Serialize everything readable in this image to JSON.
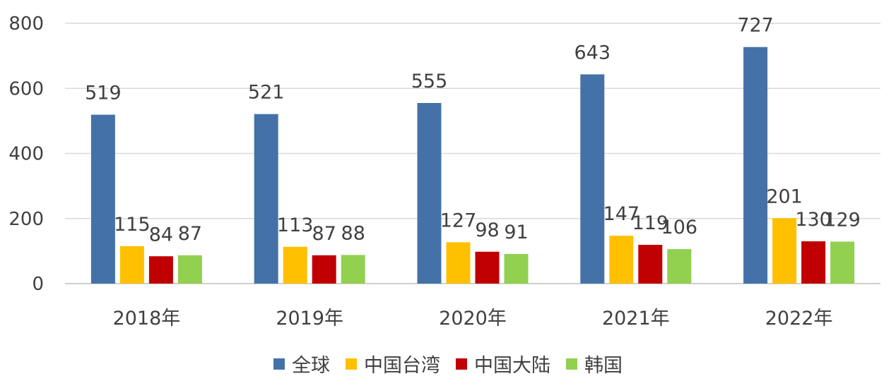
{
  "chart_data": {
    "type": "bar",
    "title": "",
    "xlabel": "",
    "ylabel": "",
    "categories": [
      "2018年",
      "2019年",
      "2020年",
      "2021年",
      "2022年"
    ],
    "ylim": [
      0,
      800
    ],
    "yticks": [
      0,
      200,
      400,
      600,
      800
    ],
    "grid": true,
    "legend_position": "bottom",
    "series": [
      {
        "name": "全球",
        "color": "#4472a8",
        "values": [
          519,
          521,
          555,
          643,
          727
        ]
      },
      {
        "name": "中国台湾",
        "color": "#ffc000",
        "values": [
          115,
          113,
          127,
          147,
          201
        ]
      },
      {
        "name": "中国大陆",
        "color": "#c00000",
        "values": [
          84,
          87,
          98,
          119,
          130
        ]
      },
      {
        "name": "韩国",
        "color": "#92d050",
        "values": [
          87,
          88,
          91,
          106,
          129
        ]
      }
    ]
  }
}
